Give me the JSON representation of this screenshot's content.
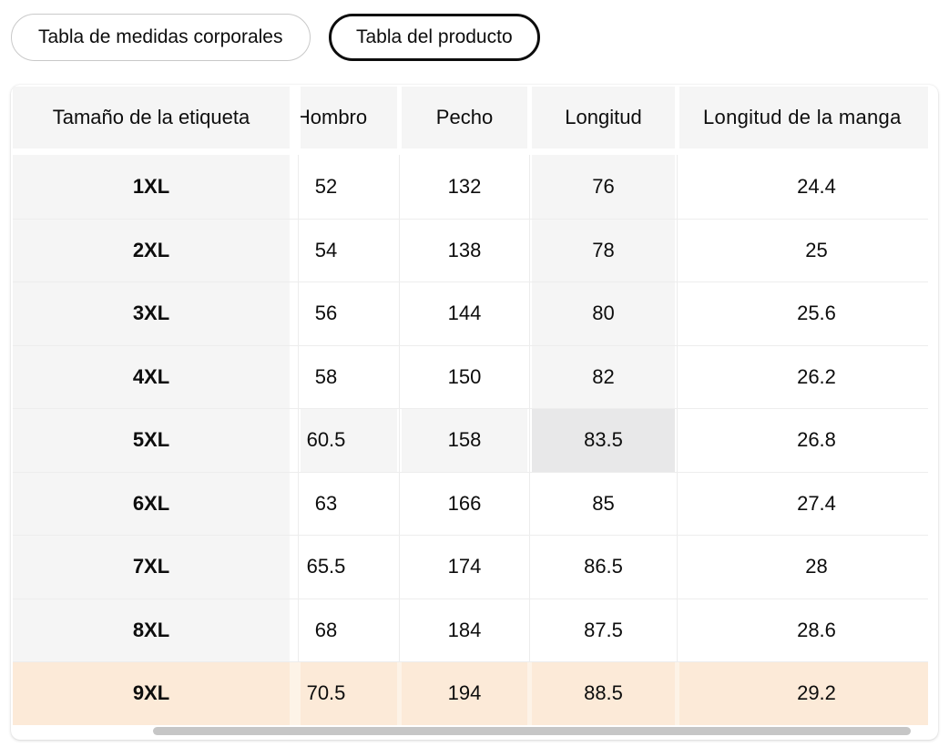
{
  "tabs": [
    {
      "label": "Tabla de medidas corporales",
      "selected": false
    },
    {
      "label": "Tabla del producto",
      "selected": true
    }
  ],
  "table": {
    "columns": [
      "Tamaño de la etiqueta",
      "Hombro",
      "Pecho",
      "Longitud",
      "Longitud de la manga"
    ],
    "rows": [
      {
        "size": "1XL",
        "hombro": "52",
        "pecho": "132",
        "longitud": "76",
        "manga": "24.4"
      },
      {
        "size": "2XL",
        "hombro": "54",
        "pecho": "138",
        "longitud": "78",
        "manga": "25"
      },
      {
        "size": "3XL",
        "hombro": "56",
        "pecho": "144",
        "longitud": "80",
        "manga": "25.6"
      },
      {
        "size": "4XL",
        "hombro": "58",
        "pecho": "150",
        "longitud": "82",
        "manga": "26.2"
      },
      {
        "size": "5XL",
        "hombro": "60.5",
        "pecho": "158",
        "longitud": "83.5",
        "manga": "26.8"
      },
      {
        "size": "6XL",
        "hombro": "63",
        "pecho": "166",
        "longitud": "85",
        "manga": "27.4"
      },
      {
        "size": "7XL",
        "hombro": "65.5",
        "pecho": "174",
        "longitud": "86.5",
        "manga": "28"
      },
      {
        "size": "8XL",
        "hombro": "68",
        "pecho": "184",
        "longitud": "87.5",
        "manga": "28.6"
      },
      {
        "size": "9XL",
        "hombro": "70.5",
        "pecho": "194",
        "longitud": "88.5",
        "manga": "29.2"
      }
    ],
    "highlight": {
      "hovered_row": "5XL",
      "hovered_column": "Longitud",
      "recommended_row": "9XL"
    }
  },
  "colors": {
    "cell_gray": "#f5f5f5",
    "cell_gray_dark": "#e8e8e9",
    "row_peach": "#fcead8",
    "selected_tab_border": "#0d0d0d",
    "scrollbar_thumb": "#c6c6c6"
  }
}
